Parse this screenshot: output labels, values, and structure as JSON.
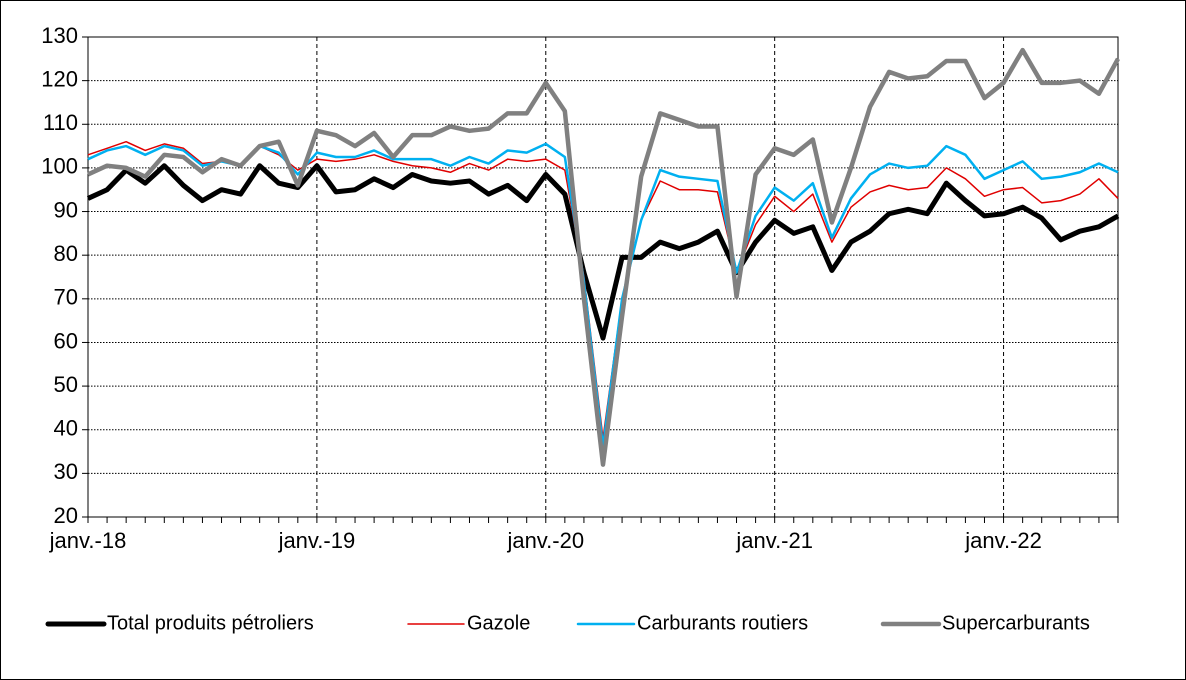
{
  "chart_data": {
    "type": "line",
    "categories": [
      "janv.-18",
      null,
      null,
      null,
      null,
      null,
      null,
      null,
      null,
      null,
      null,
      null,
      "janv.-19",
      null,
      null,
      null,
      null,
      null,
      null,
      null,
      null,
      null,
      null,
      null,
      "janv.-20",
      null,
      null,
      null,
      null,
      null,
      null,
      null,
      null,
      null,
      null,
      null,
      "janv.-21",
      null,
      null,
      null,
      null,
      null,
      null,
      null,
      null,
      null,
      null,
      null,
      "janv.-22",
      null,
      null,
      null,
      null,
      null,
      null
    ],
    "series": [
      {
        "name": "Total produits pétroliers",
        "color": "#000000",
        "values": [
          93,
          95,
          99.5,
          96.5,
          100.5,
          96,
          92.5,
          95,
          94,
          100.5,
          96.5,
          95.5,
          100.5,
          94.5,
          95,
          97.5,
          95.5,
          98.5,
          97,
          96.5,
          97,
          94,
          96,
          92.5,
          98.5,
          94,
          76,
          61,
          79.5,
          79.5,
          83,
          81.5,
          83,
          85.5,
          76,
          83,
          88,
          85,
          86.5,
          76.5,
          83,
          85.5,
          89.5,
          90.5,
          89.5,
          96.5,
          92.5,
          89,
          89.5,
          91,
          88.5,
          83.5,
          85.5,
          86.5,
          89
        ]
      },
      {
        "name": "Gazole",
        "color": "#e00000",
        "values": [
          103,
          104.5,
          106,
          104,
          105.5,
          104.5,
          101,
          101.5,
          100.5,
          105,
          103,
          99.5,
          102,
          101.5,
          102,
          103,
          101.5,
          100.5,
          100,
          99,
          101,
          99.5,
          102,
          101.5,
          102,
          99.5,
          75,
          38,
          70,
          88,
          97,
          95,
          95,
          94.5,
          76,
          87,
          93.5,
          90,
          94,
          83,
          91,
          94.5,
          96,
          95,
          95.5,
          100,
          97.5,
          93.5,
          95,
          95.5,
          92,
          92.5,
          94,
          97.5,
          93
        ]
      },
      {
        "name": "Carburants routiers",
        "color": "#00b0f0",
        "values": [
          102,
          104,
          105,
          103,
          105,
          104,
          100.5,
          101.5,
          100.5,
          105,
          103.5,
          98.5,
          103.5,
          102.5,
          102.5,
          104,
          102,
          102,
          102,
          100.5,
          102.5,
          101,
          104,
          103.5,
          105.5,
          102.5,
          74,
          36,
          70,
          88,
          99.5,
          98,
          97.5,
          97,
          76,
          89,
          95.5,
          92.5,
          96.5,
          84,
          93,
          98.5,
          101,
          100,
          100.5,
          105,
          103,
          97.5,
          99.5,
          101.5,
          97.5,
          98,
          99,
          101,
          99
        ]
      },
      {
        "name": "Supercarburants",
        "color": "#808080",
        "values": [
          98.5,
          100.5,
          100,
          98,
          103,
          102.5,
          99,
          102,
          100.5,
          105,
          106,
          96,
          108.5,
          107.5,
          105,
          108,
          102.5,
          107.5,
          107.5,
          109.5,
          108.5,
          109,
          112.5,
          112.5,
          119.5,
          113,
          70,
          32,
          66,
          98,
          112.5,
          111,
          109.5,
          109.5,
          70.5,
          98.5,
          104.5,
          103,
          106.5,
          87.5,
          100,
          114,
          122,
          120.5,
          121,
          124.5,
          124.5,
          116,
          119.5,
          127,
          119.5,
          119.5,
          120,
          117,
          125
        ]
      }
    ],
    "ylim": [
      20,
      130
    ],
    "yticks": [
      20,
      30,
      40,
      50,
      60,
      70,
      80,
      90,
      100,
      110,
      120,
      130
    ],
    "grid": true,
    "legend": "bottom"
  }
}
